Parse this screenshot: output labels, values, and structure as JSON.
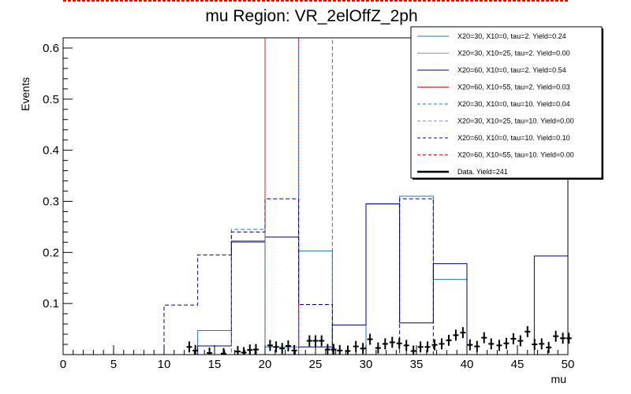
{
  "chart_data": {
    "type": "histogram",
    "title": "mu Region: VR_2elOffZ_2ph",
    "xlabel": "mu",
    "ylabel": "Events",
    "xlim": [
      0,
      50
    ],
    "ylim": [
      0,
      0.62
    ],
    "xticks": [
      0,
      5,
      10,
      15,
      20,
      25,
      30,
      35,
      40,
      45,
      50
    ],
    "yticks": [
      0.1,
      0.2,
      0.3,
      0.4,
      0.5,
      0.6
    ],
    "bin_edges": [
      0,
      3.33,
      6.67,
      10,
      13.33,
      16.67,
      20,
      23.33,
      26.67,
      30,
      33.33,
      36.67,
      40,
      43.33,
      46.67,
      50
    ],
    "series": [
      {
        "name": "X20=30, X10=0, tau=2. Yield=0.24",
        "color": "#1f77b4",
        "style": "solid",
        "values": [
          0,
          0,
          0,
          0,
          0.047,
          0.22,
          0.015,
          0.203,
          0,
          0.295,
          0.31,
          0.147,
          0,
          0,
          0
        ]
      },
      {
        "name": "X20=30, X10=25, tau=2. Yield=0.00",
        "color": "#ff7f0e",
        "style": "solid",
        "values": [
          0,
          0,
          0,
          0,
          0,
          0,
          0,
          0,
          0,
          0,
          0,
          0,
          0,
          0,
          0
        ]
      },
      {
        "name": "X20=60, X10=0, tau=2. Yield=0.54",
        "color": "#000080",
        "style": "solid",
        "values": [
          0,
          0,
          0,
          0,
          0.017,
          0.222,
          0.23,
          0.015,
          0.058,
          0.295,
          0.062,
          0.178,
          0,
          0,
          0.193
        ]
      },
      {
        "name": "X20=60, X10=55, tau=2. Yield=0.03",
        "color": "#d62728",
        "style": "solid",
        "values": [
          0,
          0,
          0,
          0,
          0,
          0,
          0.62,
          0,
          0,
          0,
          0,
          0,
          0,
          0,
          0
        ]
      },
      {
        "name": "X20=30, X10=0, tau=10. Yield=0.04",
        "color": "#1f77b4",
        "style": "dashed",
        "values": [
          0,
          0,
          0,
          0,
          0,
          0.245,
          0,
          0.62,
          0,
          0,
          0,
          0,
          0,
          0,
          0
        ]
      },
      {
        "name": "X20=30, X10=25, tau=10. Yield=0.00",
        "color": "#ff7f0e",
        "style": "dashed",
        "values": [
          0,
          0,
          0,
          0,
          0,
          0,
          0,
          0,
          0,
          0,
          0,
          0,
          0,
          0,
          0
        ]
      },
      {
        "name": "X20=60, X10=0, tau=10. Yield=0.10",
        "color": "#000080",
        "style": "dashed",
        "values": [
          0,
          0,
          0,
          0.097,
          0.195,
          0.24,
          0.305,
          0.098,
          0,
          0,
          0.305,
          0,
          0,
          0,
          0
        ]
      },
      {
        "name": "X20=60, X10=55, tau=10. Yield=0.00",
        "color": "#d62728",
        "style": "dashed",
        "values": [
          0,
          0,
          0,
          0,
          0,
          0,
          0,
          0,
          0,
          0,
          0,
          0,
          0,
          0,
          0
        ]
      }
    ],
    "data": {
      "name": "Data. Yield=241",
      "color": "#000000",
      "points": [
        [
          12.5,
          0.015
        ],
        [
          13.1,
          0.008
        ],
        [
          14.5,
          0.003
        ],
        [
          15.9,
          0.002
        ],
        [
          17.3,
          0.006
        ],
        [
          17.9,
          0.004
        ],
        [
          18.5,
          0.009
        ],
        [
          19.1,
          0.01
        ],
        [
          20.5,
          0.018
        ],
        [
          21.1,
          0.015
        ],
        [
          21.7,
          0.012
        ],
        [
          22.3,
          0.017
        ],
        [
          22.9,
          0.008
        ],
        [
          24.4,
          0.027
        ],
        [
          25.0,
          0.027
        ],
        [
          25.6,
          0.027
        ],
        [
          26.2,
          0.01
        ],
        [
          26.8,
          0.01
        ],
        [
          27.4,
          0.008
        ],
        [
          28.2,
          0.007
        ],
        [
          29.0,
          0.016
        ],
        [
          29.7,
          0.012
        ],
        [
          30.4,
          0.03
        ],
        [
          31.2,
          0.013
        ],
        [
          31.9,
          0.021
        ],
        [
          32.6,
          0.024
        ],
        [
          33.3,
          0.022
        ],
        [
          34.0,
          0.018
        ],
        [
          34.7,
          0.007
        ],
        [
          35.4,
          0.015
        ],
        [
          36.1,
          0.015
        ],
        [
          36.8,
          0.019
        ],
        [
          37.5,
          0.021
        ],
        [
          38.2,
          0.028
        ],
        [
          38.9,
          0.038
        ],
        [
          39.6,
          0.043
        ],
        [
          40.3,
          0.019
        ],
        [
          41.0,
          0.016
        ],
        [
          41.7,
          0.033
        ],
        [
          42.4,
          0.021
        ],
        [
          43.2,
          0.018
        ],
        [
          43.9,
          0.022
        ],
        [
          44.6,
          0.031
        ],
        [
          45.3,
          0.027
        ],
        [
          46.0,
          0.045
        ],
        [
          46.7,
          0.02
        ],
        [
          47.4,
          0.021
        ],
        [
          48.1,
          0.014
        ],
        [
          48.8,
          0.036
        ],
        [
          49.5,
          0.032
        ],
        [
          50.1,
          0.032
        ]
      ]
    },
    "legend_position": "top-right"
  }
}
